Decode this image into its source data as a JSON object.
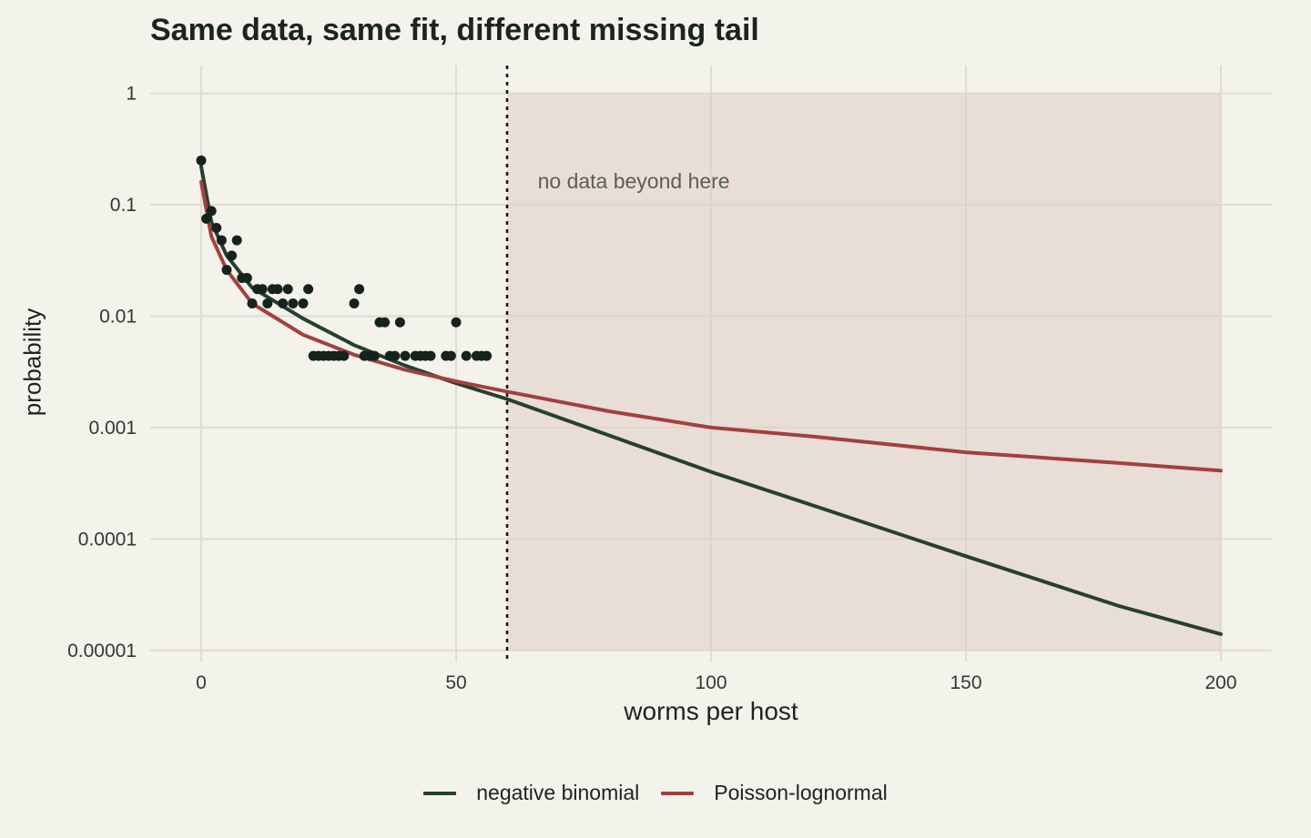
{
  "chart_data": {
    "type": "line",
    "title": "Same data, same fit, different missing tail",
    "xlabel": "worms per host",
    "ylabel": "probability",
    "xlim": [
      -10,
      210
    ],
    "ylim_log10": [
      -5.1,
      0.25
    ],
    "y_scale": "log10",
    "x_ticks": [
      0,
      50,
      100,
      150,
      200
    ],
    "x_tick_labels": [
      "0",
      "50",
      "100",
      "150",
      "200"
    ],
    "y_ticks": [
      1,
      0.1,
      0.01,
      0.001,
      0.0001,
      1e-05
    ],
    "y_tick_labels": [
      "1",
      "0.1",
      "0.01",
      "0.001",
      "0.0001",
      "0.00001"
    ],
    "grid": true,
    "legend_position": "bottom",
    "cutoff_x": 60,
    "shaded_region": {
      "x": [
        60,
        200
      ],
      "y": [
        1e-05,
        1
      ]
    },
    "annotation": {
      "text": "no data beyond here",
      "x": 66,
      "y": 0.14
    },
    "observed_points": {
      "x": [
        0,
        1,
        2,
        3,
        4,
        5,
        6,
        7,
        8,
        9,
        10,
        11,
        12,
        13,
        14,
        15,
        16,
        17,
        18,
        20,
        21,
        22,
        23,
        24,
        25,
        26,
        27,
        28,
        30,
        31,
        32,
        33,
        34,
        35,
        36,
        37,
        38,
        39,
        40,
        42,
        43,
        44,
        45,
        48,
        49,
        50,
        52,
        54,
        55,
        56
      ],
      "y": [
        0.25,
        0.075,
        0.088,
        0.062,
        0.048,
        0.026,
        0.035,
        0.048,
        0.022,
        0.022,
        0.013,
        0.0175,
        0.0175,
        0.013,
        0.0175,
        0.0175,
        0.013,
        0.0175,
        0.013,
        0.013,
        0.0175,
        0.0044,
        0.0044,
        0.0044,
        0.0044,
        0.0044,
        0.0044,
        0.0044,
        0.013,
        0.0175,
        0.0044,
        0.0044,
        0.0044,
        0.0088,
        0.0088,
        0.0044,
        0.0044,
        0.0088,
        0.0044,
        0.0044,
        0.0044,
        0.0044,
        0.0044,
        0.0044,
        0.0044,
        0.0088,
        0.0044,
        0.0044,
        0.0044,
        0.0044
      ]
    },
    "series": [
      {
        "name": "negative binomial",
        "color": "#26402f",
        "x": [
          0,
          2,
          5,
          10,
          20,
          30,
          40,
          50,
          60,
          80,
          100,
          120,
          150,
          180,
          200
        ],
        "y": [
          0.22,
          0.07,
          0.035,
          0.018,
          0.0095,
          0.0055,
          0.0036,
          0.0025,
          0.0018,
          0.00085,
          0.0004,
          0.0002,
          7e-05,
          2.5e-05,
          1.4e-05
        ]
      },
      {
        "name": "Poisson-lognormal",
        "color": "#a3403f",
        "x": [
          0,
          2,
          5,
          10,
          20,
          30,
          40,
          50,
          60,
          80,
          100,
          120,
          150,
          180,
          200
        ],
        "y": [
          0.16,
          0.052,
          0.026,
          0.013,
          0.0068,
          0.0045,
          0.0033,
          0.0026,
          0.0021,
          0.0014,
          0.001,
          0.00083,
          0.0006,
          0.00048,
          0.00041
        ]
      }
    ]
  }
}
